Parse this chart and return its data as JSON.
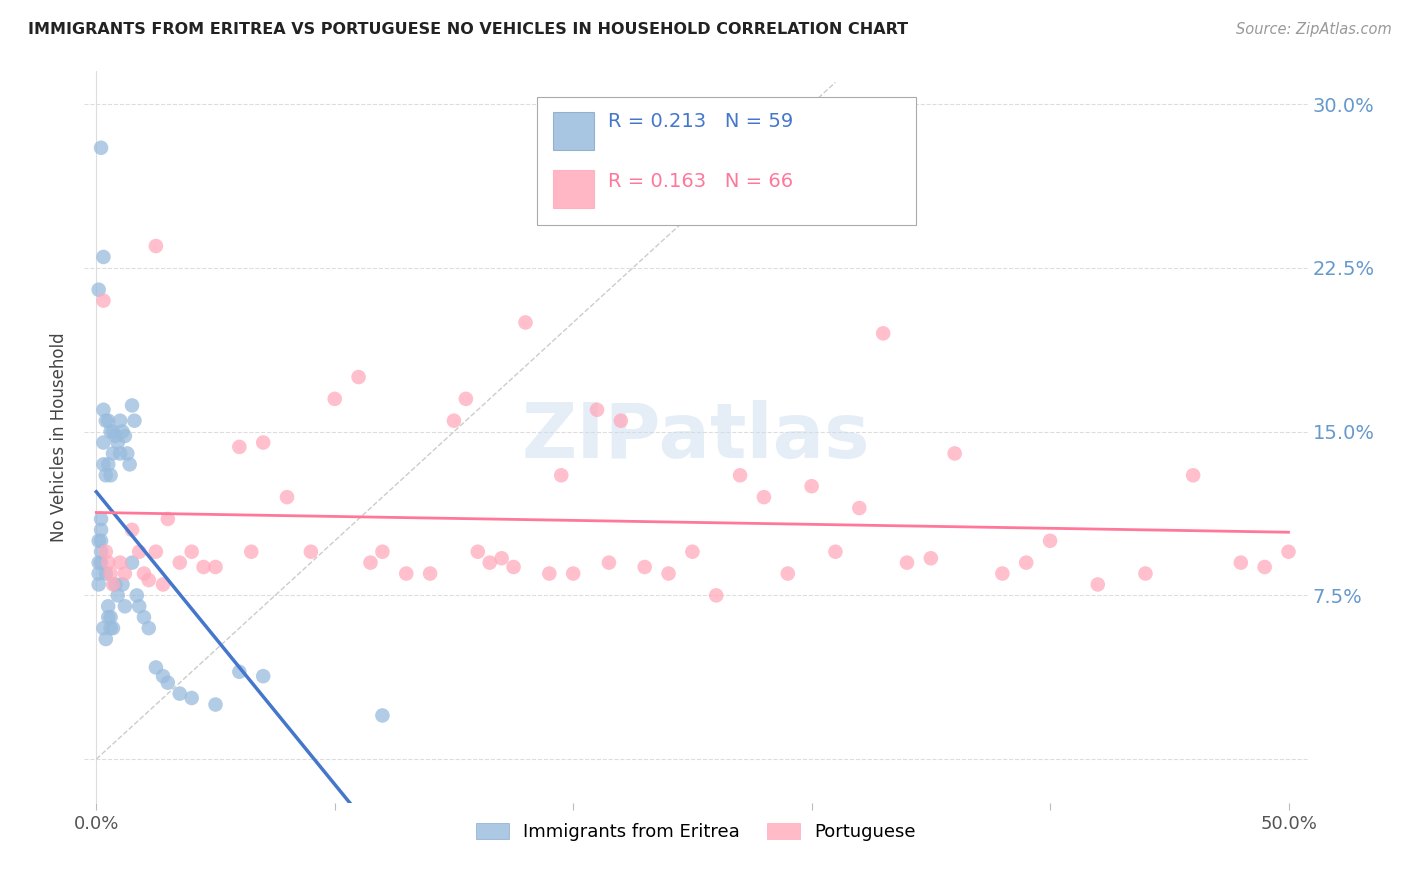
{
  "title": "IMMIGRANTS FROM ERITREA VS PORTUGUESE NO VEHICLES IN HOUSEHOLD CORRELATION CHART",
  "source": "Source: ZipAtlas.com",
  "ylabel": "No Vehicles in Household",
  "xlim": [
    0.0,
    0.5
  ],
  "ylim": [
    -0.02,
    0.315
  ],
  "yticks": [
    0.0,
    0.075,
    0.15,
    0.225,
    0.3
  ],
  "ytick_labels": [
    "",
    "7.5%",
    "15.0%",
    "22.5%",
    "30.0%"
  ],
  "xticks": [
    0.0,
    0.1,
    0.2,
    0.3,
    0.4,
    0.5
  ],
  "xtick_labels": [
    "0.0%",
    "",
    "",
    "",
    "",
    "50.0%"
  ],
  "color_blue": "#99BBDD",
  "color_pink": "#FFAABB",
  "color_line_blue": "#4477CC",
  "color_line_pink": "#FF7799",
  "color_title": "#222222",
  "color_ytick": "#6699CC",
  "color_source": "#999999",
  "watermark": "ZIPatlas",
  "background_color": "#FFFFFF",
  "eritrea_x": [
    0.001,
    0.001,
    0.001,
    0.001,
    0.002,
    0.002,
    0.002,
    0.002,
    0.002,
    0.003,
    0.003,
    0.003,
    0.003,
    0.004,
    0.004,
    0.004,
    0.005,
    0.005,
    0.005,
    0.006,
    0.006,
    0.006,
    0.007,
    0.007,
    0.008,
    0.008,
    0.009,
    0.009,
    0.01,
    0.01,
    0.011,
    0.011,
    0.012,
    0.012,
    0.013,
    0.014,
    0.015,
    0.015,
    0.016,
    0.017,
    0.018,
    0.02,
    0.022,
    0.025,
    0.028,
    0.03,
    0.035,
    0.04,
    0.05,
    0.06,
    0.07,
    0.001,
    0.002,
    0.003,
    0.004,
    0.005,
    0.006,
    0.007,
    0.12
  ],
  "eritrea_y": [
    0.1,
    0.09,
    0.085,
    0.08,
    0.28,
    0.105,
    0.1,
    0.095,
    0.09,
    0.16,
    0.145,
    0.135,
    0.06,
    0.155,
    0.13,
    0.055,
    0.155,
    0.135,
    0.065,
    0.15,
    0.13,
    0.06,
    0.15,
    0.14,
    0.148,
    0.08,
    0.145,
    0.075,
    0.155,
    0.14,
    0.15,
    0.08,
    0.148,
    0.07,
    0.14,
    0.135,
    0.162,
    0.09,
    0.155,
    0.075,
    0.07,
    0.065,
    0.06,
    0.042,
    0.038,
    0.035,
    0.03,
    0.028,
    0.025,
    0.04,
    0.038,
    0.215,
    0.11,
    0.23,
    0.085,
    0.07,
    0.065,
    0.06,
    0.02
  ],
  "portuguese_x": [
    0.003,
    0.004,
    0.005,
    0.006,
    0.007,
    0.01,
    0.012,
    0.015,
    0.018,
    0.02,
    0.022,
    0.025,
    0.028,
    0.03,
    0.035,
    0.04,
    0.045,
    0.05,
    0.06,
    0.065,
    0.07,
    0.08,
    0.09,
    0.1,
    0.11,
    0.115,
    0.12,
    0.13,
    0.14,
    0.15,
    0.155,
    0.16,
    0.165,
    0.17,
    0.175,
    0.18,
    0.19,
    0.195,
    0.2,
    0.21,
    0.215,
    0.22,
    0.23,
    0.24,
    0.25,
    0.26,
    0.27,
    0.28,
    0.29,
    0.3,
    0.31,
    0.32,
    0.33,
    0.34,
    0.35,
    0.36,
    0.38,
    0.39,
    0.4,
    0.42,
    0.44,
    0.46,
    0.48,
    0.49,
    0.5,
    0.025
  ],
  "portuguese_y": [
    0.21,
    0.095,
    0.09,
    0.085,
    0.08,
    0.09,
    0.085,
    0.105,
    0.095,
    0.085,
    0.082,
    0.095,
    0.08,
    0.11,
    0.09,
    0.095,
    0.088,
    0.088,
    0.143,
    0.095,
    0.145,
    0.12,
    0.095,
    0.165,
    0.175,
    0.09,
    0.095,
    0.085,
    0.085,
    0.155,
    0.165,
    0.095,
    0.09,
    0.092,
    0.088,
    0.2,
    0.085,
    0.13,
    0.085,
    0.16,
    0.09,
    0.155,
    0.088,
    0.085,
    0.095,
    0.075,
    0.13,
    0.12,
    0.085,
    0.125,
    0.095,
    0.115,
    0.195,
    0.09,
    0.092,
    0.14,
    0.085,
    0.09,
    0.1,
    0.08,
    0.085,
    0.13,
    0.09,
    0.088,
    0.095,
    0.235
  ]
}
